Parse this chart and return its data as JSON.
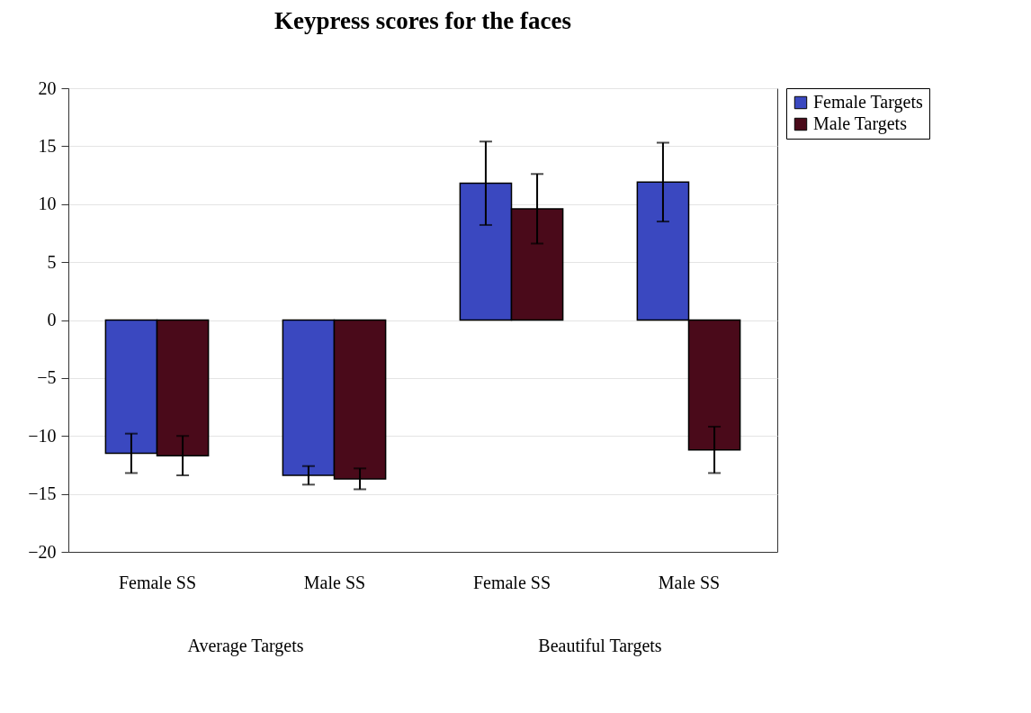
{
  "chart_data": {
    "type": "bar",
    "title": "Keypress scores for the faces",
    "categories": [
      "Female SS",
      "Male SS",
      "Female SS",
      "Male SS"
    ],
    "annotations": [
      "Average Targets",
      "Beautiful Targets"
    ],
    "series": [
      {
        "name": "Female Targets",
        "color": "#3a48c0",
        "values": [
          -11.5,
          -13.4,
          11.8,
          11.9
        ],
        "errors": [
          1.7,
          0.8,
          3.6,
          3.4
        ]
      },
      {
        "name": "Male Targets",
        "color": "#4a0a1a",
        "values": [
          -11.7,
          -13.7,
          9.6,
          -11.2
        ],
        "errors": [
          1.7,
          0.9,
          3.0,
          2.0
        ]
      }
    ],
    "ylim": [
      -20,
      20
    ],
    "yticks": [
      -20,
      -15,
      -10,
      -5,
      0,
      5,
      10,
      15,
      20
    ],
    "grid": "y",
    "legend": "right"
  }
}
